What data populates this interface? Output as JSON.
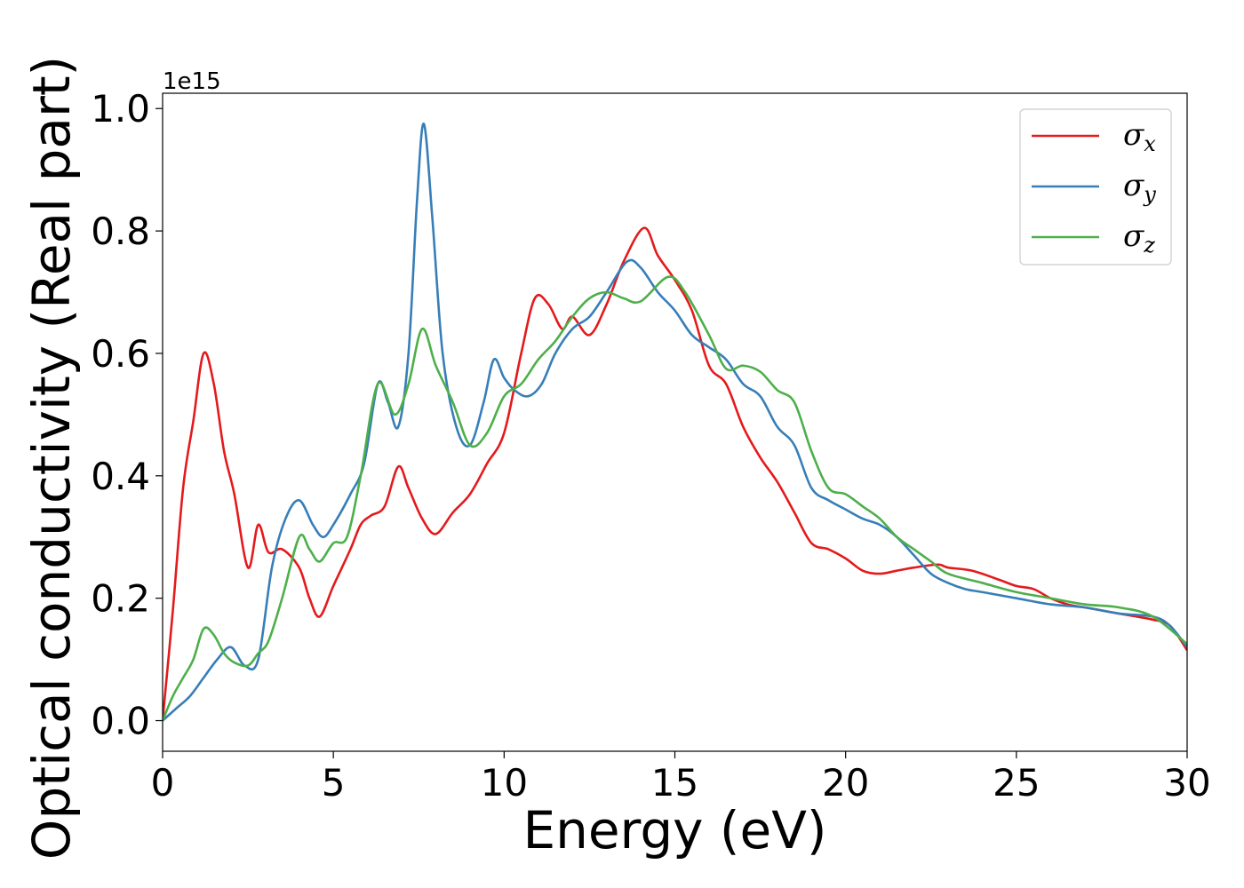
{
  "chart_data": {
    "type": "line",
    "xlabel": "Energy (eV)",
    "ylabel": "Optical conductivity (Real part)",
    "y_offset_label": "1e15",
    "xlim": [
      0,
      30
    ],
    "ylim": [
      -0.05,
      1.025
    ],
    "y_scale_multiplier": 1000000000000000.0,
    "x_ticks": [
      0,
      5,
      10,
      15,
      20,
      25,
      30
    ],
    "x_tick_labels": [
      "0",
      "5",
      "10",
      "15",
      "20",
      "25",
      "30"
    ],
    "y_ticks": [
      0.0,
      0.2,
      0.4,
      0.6,
      0.8,
      1.0
    ],
    "y_tick_labels": [
      "0.0",
      "0.2",
      "0.4",
      "0.6",
      "0.8",
      "1.0"
    ],
    "grid": false,
    "legend_position": "top-right",
    "series": [
      {
        "name": "σ_x",
        "legend_symbol": "σ",
        "legend_sub": "x",
        "color": "#e41a1c",
        "x": [
          0,
          0.3,
          0.6,
          0.9,
          1.2,
          1.5,
          1.8,
          2.1,
          2.5,
          2.8,
          3.1,
          3.5,
          4.0,
          4.3,
          4.6,
          5.0,
          5.5,
          5.8,
          6.1,
          6.5,
          6.9,
          7.2,
          7.6,
          8.0,
          8.5,
          9.0,
          9.5,
          10.0,
          10.5,
          10.9,
          11.3,
          11.7,
          12.0,
          12.5,
          13.0,
          13.5,
          14.1,
          14.5,
          15.0,
          15.5,
          16.0,
          16.5,
          17.0,
          17.5,
          18.0,
          18.5,
          19.0,
          19.5,
          20.0,
          20.5,
          21.0,
          21.5,
          22.0,
          22.7,
          23.0,
          23.7,
          24.5,
          25.0,
          25.5,
          26.0,
          26.5,
          27.0,
          28.0,
          29.0,
          29.5,
          30.0
        ],
        "y": [
          0.0,
          0.18,
          0.38,
          0.49,
          0.6,
          0.55,
          0.44,
          0.37,
          0.25,
          0.32,
          0.275,
          0.28,
          0.25,
          0.2,
          0.17,
          0.22,
          0.28,
          0.32,
          0.335,
          0.35,
          0.415,
          0.38,
          0.33,
          0.305,
          0.34,
          0.37,
          0.42,
          0.47,
          0.6,
          0.69,
          0.68,
          0.64,
          0.66,
          0.63,
          0.68,
          0.75,
          0.805,
          0.76,
          0.72,
          0.67,
          0.58,
          0.55,
          0.48,
          0.43,
          0.39,
          0.34,
          0.29,
          0.28,
          0.265,
          0.245,
          0.24,
          0.245,
          0.25,
          0.255,
          0.25,
          0.245,
          0.23,
          0.22,
          0.215,
          0.2,
          0.19,
          0.185,
          0.175,
          0.165,
          0.155,
          0.115
        ]
      },
      {
        "name": "σ_y",
        "legend_symbol": "σ",
        "legend_sub": "y",
        "color": "#377eb8",
        "x": [
          0,
          0.4,
          0.8,
          1.2,
          1.6,
          2.0,
          2.4,
          2.8,
          3.2,
          3.6,
          4.0,
          4.4,
          4.7,
          5.0,
          5.5,
          5.9,
          6.3,
          6.6,
          6.9,
          7.2,
          7.45,
          7.65,
          7.9,
          8.2,
          8.6,
          9.0,
          9.4,
          9.7,
          10.0,
          10.3,
          10.7,
          11.1,
          11.5,
          12.0,
          12.5,
          13.0,
          13.6,
          14.0,
          14.5,
          15.0,
          15.5,
          16.0,
          16.5,
          17.0,
          17.5,
          18.0,
          18.5,
          19.0,
          19.5,
          20.0,
          20.5,
          21.0,
          21.5,
          22.0,
          22.5,
          23.0,
          23.5,
          24.0,
          25.0,
          26.0,
          27.0,
          28.0,
          29.0,
          29.5,
          30.0
        ],
        "y": [
          0.0,
          0.02,
          0.04,
          0.07,
          0.1,
          0.12,
          0.09,
          0.1,
          0.25,
          0.33,
          0.36,
          0.32,
          0.3,
          0.32,
          0.37,
          0.42,
          0.55,
          0.52,
          0.48,
          0.6,
          0.85,
          0.975,
          0.82,
          0.6,
          0.48,
          0.45,
          0.52,
          0.59,
          0.56,
          0.54,
          0.53,
          0.55,
          0.6,
          0.64,
          0.66,
          0.7,
          0.75,
          0.74,
          0.7,
          0.67,
          0.63,
          0.61,
          0.59,
          0.55,
          0.53,
          0.48,
          0.45,
          0.38,
          0.36,
          0.345,
          0.33,
          0.32,
          0.3,
          0.27,
          0.24,
          0.225,
          0.215,
          0.21,
          0.2,
          0.19,
          0.185,
          0.175,
          0.17,
          0.155,
          0.12
        ]
      },
      {
        "name": "σ_z",
        "legend_symbol": "σ",
        "legend_sub": "z",
        "color": "#4daf4a",
        "x": [
          0,
          0.3,
          0.6,
          0.9,
          1.2,
          1.5,
          1.8,
          2.1,
          2.5,
          2.8,
          3.1,
          3.5,
          4.0,
          4.3,
          4.6,
          5.0,
          5.4,
          5.8,
          6.3,
          6.8,
          7.2,
          7.6,
          8.0,
          8.5,
          9.0,
          9.5,
          10.0,
          10.5,
          11.0,
          11.5,
          12.0,
          12.5,
          13.0,
          13.5,
          14.0,
          14.8,
          15.3,
          16.0,
          16.5,
          17.0,
          17.5,
          18.0,
          18.5,
          19.0,
          19.5,
          20.0,
          20.5,
          21.0,
          21.5,
          22.0,
          22.5,
          23.0,
          24.0,
          25.0,
          26.0,
          27.0,
          28.0,
          29.0,
          30.0
        ],
        "y": [
          0.0,
          0.04,
          0.07,
          0.1,
          0.15,
          0.14,
          0.11,
          0.095,
          0.09,
          0.11,
          0.13,
          0.2,
          0.3,
          0.28,
          0.26,
          0.29,
          0.3,
          0.4,
          0.55,
          0.5,
          0.55,
          0.64,
          0.58,
          0.52,
          0.45,
          0.47,
          0.53,
          0.55,
          0.59,
          0.62,
          0.66,
          0.69,
          0.7,
          0.69,
          0.685,
          0.725,
          0.7,
          0.63,
          0.575,
          0.58,
          0.57,
          0.54,
          0.52,
          0.44,
          0.38,
          0.37,
          0.35,
          0.33,
          0.3,
          0.28,
          0.26,
          0.24,
          0.225,
          0.21,
          0.2,
          0.19,
          0.185,
          0.17,
          0.125
        ]
      }
    ]
  }
}
